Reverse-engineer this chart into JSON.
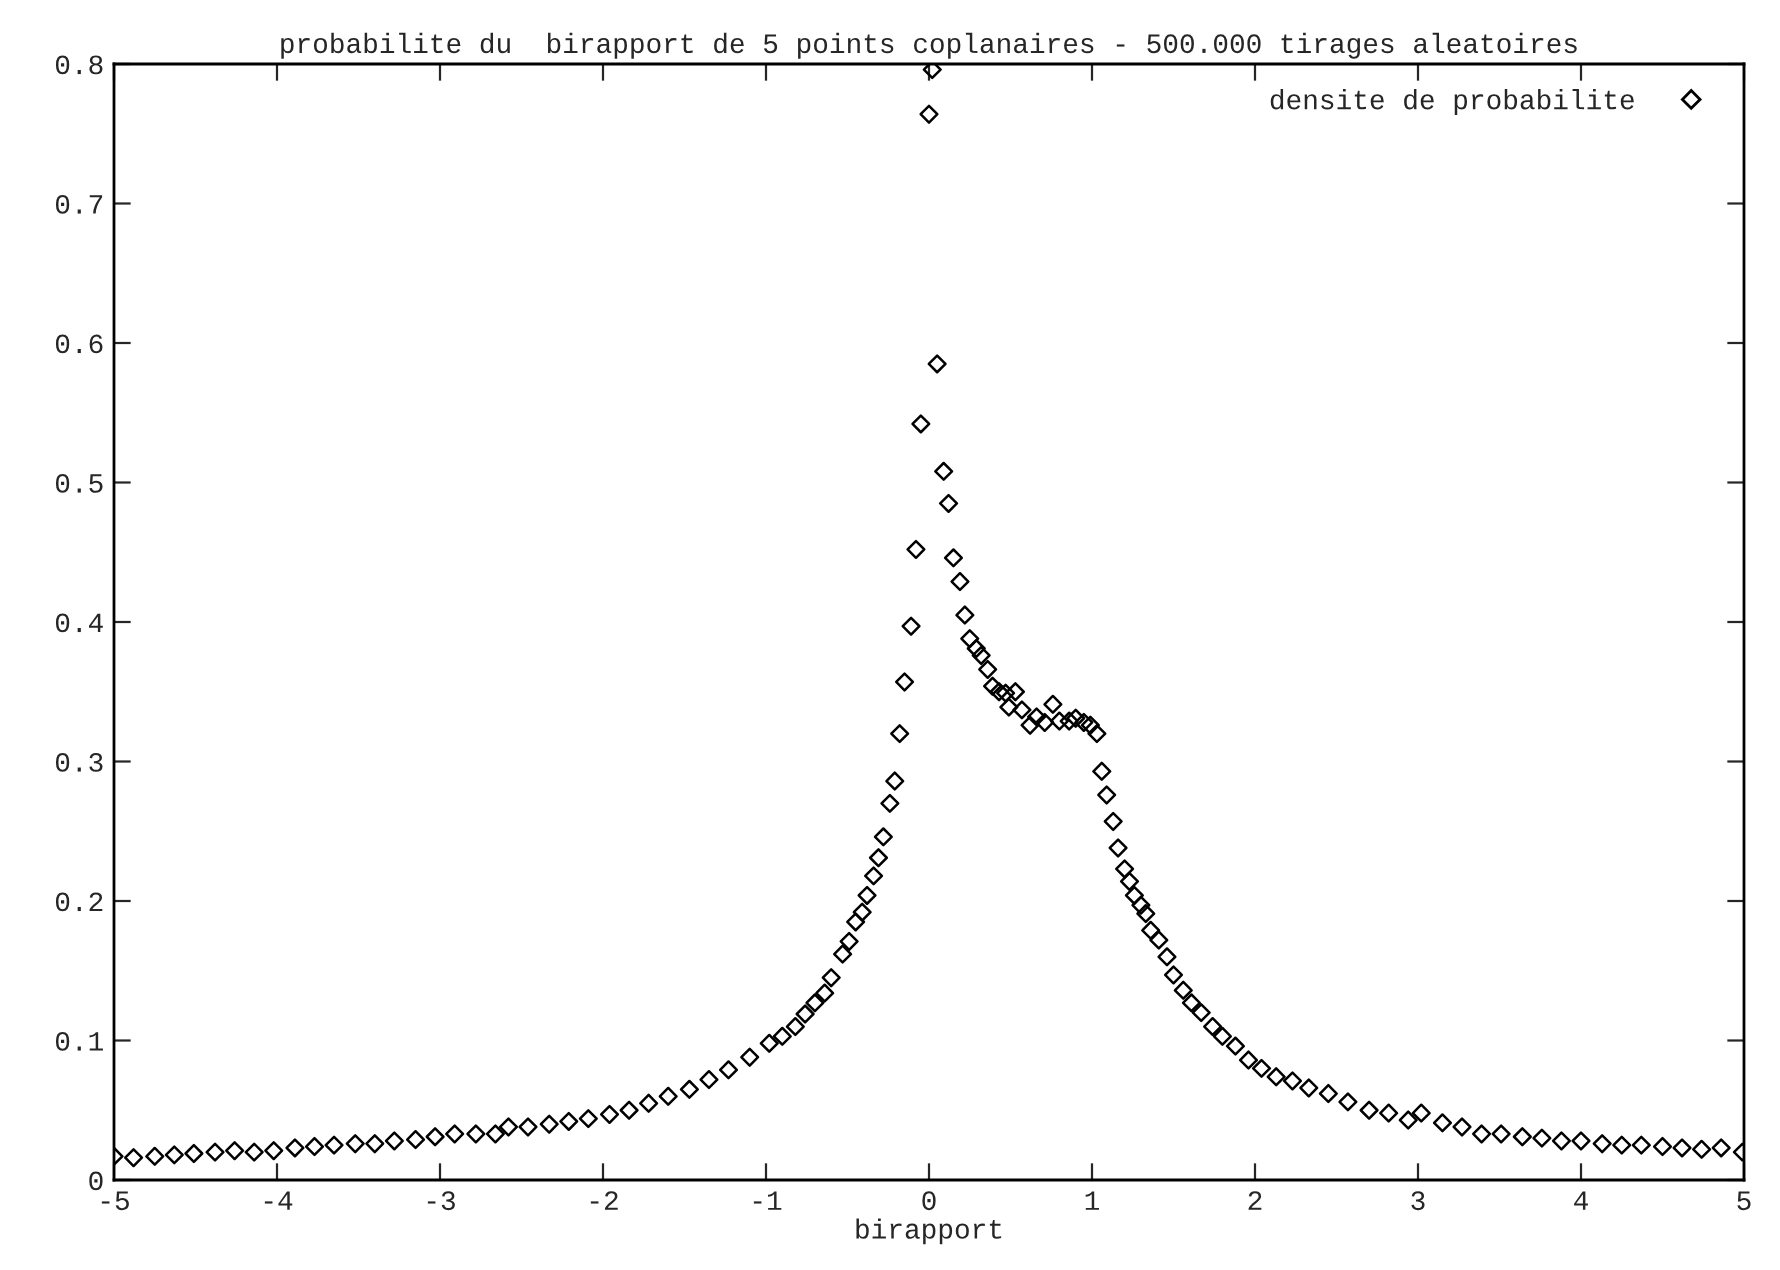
{
  "chart_data": {
    "type": "scatter",
    "title": "probabilite du  birapport de 5 points coplanaires - 500.000 tirages aleatoires",
    "xlabel": "birapport",
    "xlim": [
      -5,
      5
    ],
    "ylim": [
      0,
      0.8
    ],
    "xticks": [
      {
        "value": -5,
        "label": "-5"
      },
      {
        "value": -4,
        "label": "-4"
      },
      {
        "value": -3,
        "label": "-3"
      },
      {
        "value": -2,
        "label": "-2"
      },
      {
        "value": -1,
        "label": "-1"
      },
      0,
      1,
      2,
      3,
      4,
      5
    ],
    "yticks": [
      0,
      0.1,
      0.2,
      0.3,
      0.4,
      0.5,
      0.6,
      0.7,
      0.8
    ],
    "grid": false,
    "legend": "top right",
    "marker": "diamond",
    "series": [
      {
        "name": "densite de probabilite",
        "color": "#000000",
        "x": [
          -5.0,
          -4.88,
          -4.75,
          -4.63,
          -4.51,
          -4.38,
          -4.26,
          -4.14,
          -4.02,
          -3.89,
          -3.77,
          -3.65,
          -3.52,
          -3.4,
          -3.28,
          -3.15,
          -3.03,
          -2.91,
          -2.78,
          -2.66,
          -2.58,
          -2.46,
          -2.33,
          -2.21,
          -2.09,
          -1.96,
          -1.84,
          -1.72,
          -1.6,
          -1.47,
          -1.35,
          -1.23,
          -1.1,
          -0.98,
          -0.9,
          -0.82,
          -0.76,
          -0.7,
          -0.64,
          -0.6,
          -0.53,
          -0.49,
          -0.45,
          -0.41,
          -0.38,
          -0.34,
          -0.31,
          -0.28,
          -0.24,
          -0.21,
          -0.18,
          -0.15,
          -0.11,
          -0.08,
          -0.05,
          0.0,
          0.02,
          0.05,
          0.09,
          0.12,
          0.15,
          0.19,
          0.22,
          0.25,
          0.29,
          0.32,
          0.36,
          0.39,
          0.43,
          0.47,
          0.49,
          0.53,
          0.57,
          0.62,
          0.66,
          0.71,
          0.76,
          0.8,
          0.86,
          0.9,
          0.95,
          0.99,
          1.03,
          1.06,
          1.09,
          1.13,
          1.16,
          1.2,
          1.23,
          1.26,
          1.3,
          1.33,
          1.36,
          1.41,
          1.46,
          1.5,
          1.56,
          1.61,
          1.67,
          1.74,
          1.8,
          1.88,
          1.96,
          2.04,
          2.13,
          2.23,
          2.33,
          2.45,
          2.57,
          2.7,
          2.82,
          2.94,
          3.02,
          3.15,
          3.27,
          3.39,
          3.51,
          3.64,
          3.76,
          3.88,
          4.0,
          4.13,
          4.25,
          4.37,
          4.5,
          4.62,
          4.74,
          4.86,
          4.99
        ],
        "values": [
          0.017,
          0.016,
          0.017,
          0.018,
          0.019,
          0.02,
          0.021,
          0.02,
          0.021,
          0.023,
          0.024,
          0.025,
          0.026,
          0.026,
          0.028,
          0.029,
          0.031,
          0.033,
          0.033,
          0.033,
          0.038,
          0.038,
          0.04,
          0.042,
          0.044,
          0.047,
          0.05,
          0.055,
          0.06,
          0.065,
          0.072,
          0.079,
          0.088,
          0.098,
          0.103,
          0.11,
          0.119,
          0.127,
          0.134,
          0.145,
          0.162,
          0.171,
          0.185,
          0.192,
          0.204,
          0.218,
          0.231,
          0.246,
          0.27,
          0.286,
          0.32,
          0.357,
          0.397,
          0.452,
          0.542,
          0.764,
          0.796,
          0.585,
          0.508,
          0.485,
          0.446,
          0.429,
          0.405,
          0.388,
          0.381,
          0.376,
          0.366,
          0.354,
          0.35,
          0.349,
          0.339,
          0.35,
          0.337,
          0.326,
          0.332,
          0.328,
          0.341,
          0.329,
          0.329,
          0.331,
          0.328,
          0.326,
          0.32,
          0.293,
          0.276,
          0.257,
          0.238,
          0.223,
          0.214,
          0.204,
          0.197,
          0.191,
          0.179,
          0.172,
          0.16,
          0.147,
          0.136,
          0.127,
          0.12,
          0.11,
          0.103,
          0.096,
          0.086,
          0.08,
          0.074,
          0.071,
          0.066,
          0.062,
          0.056,
          0.05,
          0.048,
          0.043,
          0.048,
          0.041,
          0.038,
          0.033,
          0.033,
          0.031,
          0.03,
          0.028,
          0.028,
          0.026,
          0.025,
          0.025,
          0.024,
          0.023,
          0.022,
          0.023,
          0.02
        ]
      }
    ]
  }
}
